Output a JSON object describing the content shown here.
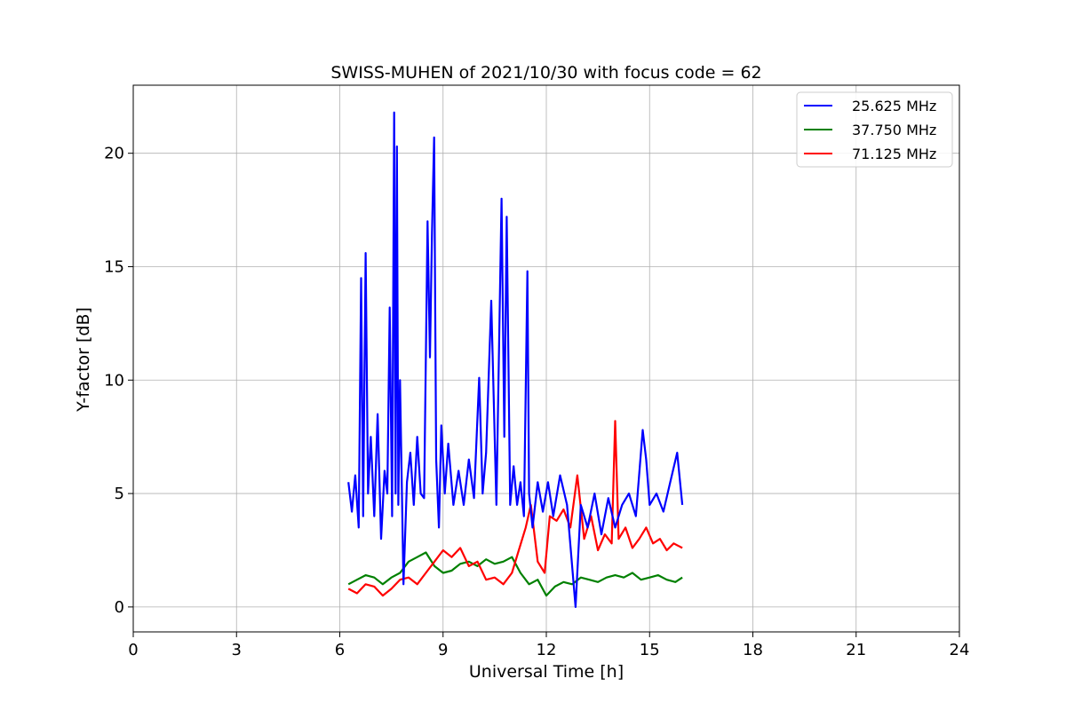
{
  "chart_data": {
    "type": "line",
    "title": "SWISS-MUHEN of 2021/10/30 with focus code = 62",
    "xlabel": "Universal Time [h]",
    "ylabel": "Y-factor [dB]",
    "xlim": [
      0,
      24
    ],
    "ylim": [
      -1.1,
      23.0
    ],
    "xticks": [
      0,
      3,
      6,
      9,
      12,
      15,
      18,
      21,
      24
    ],
    "yticks": [
      0,
      5,
      10,
      15,
      20
    ],
    "grid": true,
    "legend_position": "top-right",
    "series": [
      {
        "name": "25.625 MHz",
        "color": "#0000ff",
        "x": [
          6.25,
          6.35,
          6.45,
          6.55,
          6.62,
          6.68,
          6.75,
          6.82,
          6.9,
          7.0,
          7.1,
          7.2,
          7.3,
          7.38,
          7.45,
          7.52,
          7.58,
          7.62,
          7.66,
          7.7,
          7.75,
          7.85,
          7.95,
          8.05,
          8.15,
          8.25,
          8.35,
          8.45,
          8.55,
          8.62,
          8.68,
          8.74,
          8.8,
          8.88,
          8.95,
          9.05,
          9.15,
          9.3,
          9.45,
          9.6,
          9.75,
          9.9,
          10.05,
          10.15,
          10.25,
          10.4,
          10.55,
          10.7,
          10.78,
          10.85,
          10.95,
          11.05,
          11.15,
          11.25,
          11.35,
          11.45,
          11.5,
          11.6,
          11.75,
          11.9,
          12.05,
          12.2,
          12.4,
          12.6,
          12.85,
          13.0,
          13.2,
          13.4,
          13.6,
          13.8,
          14.0,
          14.2,
          14.4,
          14.6,
          14.8,
          14.9,
          15.0,
          15.2,
          15.4,
          15.6,
          15.8,
          15.95
        ],
        "y": [
          5.5,
          4.2,
          5.8,
          3.5,
          14.5,
          4.0,
          15.6,
          5.0,
          7.5,
          4.0,
          8.5,
          3.0,
          6.0,
          5.0,
          13.2,
          4.0,
          21.8,
          5.0,
          20.3,
          4.5,
          10.0,
          1.0,
          5.5,
          6.8,
          4.5,
          7.5,
          5.0,
          4.8,
          17.0,
          11.0,
          16.5,
          20.7,
          6.5,
          3.5,
          8.0,
          5.0,
          7.2,
          4.5,
          6.0,
          4.5,
          6.5,
          4.8,
          10.1,
          5.0,
          6.8,
          13.5,
          4.5,
          18.0,
          7.5,
          17.2,
          4.5,
          6.2,
          4.5,
          5.5,
          4.0,
          14.8,
          5.0,
          3.5,
          5.5,
          4.2,
          5.5,
          4.0,
          5.8,
          4.5,
          0.0,
          4.5,
          3.5,
          5.0,
          3.2,
          4.8,
          3.5,
          4.5,
          5.0,
          4.0,
          7.8,
          6.5,
          4.5,
          5.0,
          4.2,
          5.5,
          6.8,
          4.5
        ]
      },
      {
        "name": "37.750 MHz",
        "color": "#008000",
        "x": [
          6.25,
          6.5,
          6.75,
          7.0,
          7.25,
          7.5,
          7.75,
          8.0,
          8.25,
          8.5,
          8.75,
          9.0,
          9.25,
          9.5,
          9.75,
          10.0,
          10.25,
          10.5,
          10.75,
          11.0,
          11.25,
          11.5,
          11.75,
          12.0,
          12.25,
          12.5,
          12.75,
          13.0,
          13.25,
          13.5,
          13.75,
          14.0,
          14.25,
          14.5,
          14.75,
          15.0,
          15.25,
          15.5,
          15.75,
          15.95
        ],
        "y": [
          1.0,
          1.2,
          1.4,
          1.3,
          1.0,
          1.3,
          1.5,
          2.0,
          2.2,
          2.4,
          1.8,
          1.5,
          1.6,
          1.9,
          2.0,
          1.8,
          2.1,
          1.9,
          2.0,
          2.2,
          1.5,
          1.0,
          1.2,
          0.5,
          0.9,
          1.1,
          1.0,
          1.3,
          1.2,
          1.1,
          1.3,
          1.4,
          1.3,
          1.5,
          1.2,
          1.3,
          1.4,
          1.2,
          1.1,
          1.3
        ]
      },
      {
        "name": "71.125 MHz",
        "color": "#ff0000",
        "x": [
          6.25,
          6.5,
          6.75,
          7.0,
          7.25,
          7.5,
          7.75,
          8.0,
          8.25,
          8.5,
          8.75,
          9.0,
          9.25,
          9.5,
          9.75,
          10.0,
          10.25,
          10.5,
          10.75,
          11.0,
          11.2,
          11.4,
          11.55,
          11.75,
          11.95,
          12.1,
          12.3,
          12.5,
          12.7,
          12.9,
          13.1,
          13.3,
          13.5,
          13.7,
          13.9,
          14.0,
          14.1,
          14.3,
          14.5,
          14.7,
          14.9,
          15.1,
          15.3,
          15.5,
          15.7,
          15.95
        ],
        "y": [
          0.8,
          0.6,
          1.0,
          0.9,
          0.5,
          0.8,
          1.2,
          1.3,
          1.0,
          1.5,
          2.0,
          2.5,
          2.2,
          2.6,
          1.8,
          2.0,
          1.2,
          1.3,
          1.0,
          1.5,
          2.5,
          3.5,
          4.5,
          2.0,
          1.5,
          4.0,
          3.8,
          4.3,
          3.5,
          5.8,
          3.0,
          4.0,
          2.5,
          3.2,
          2.8,
          8.2,
          3.0,
          3.5,
          2.6,
          3.0,
          3.5,
          2.8,
          3.0,
          2.5,
          2.8,
          2.6
        ]
      }
    ]
  }
}
